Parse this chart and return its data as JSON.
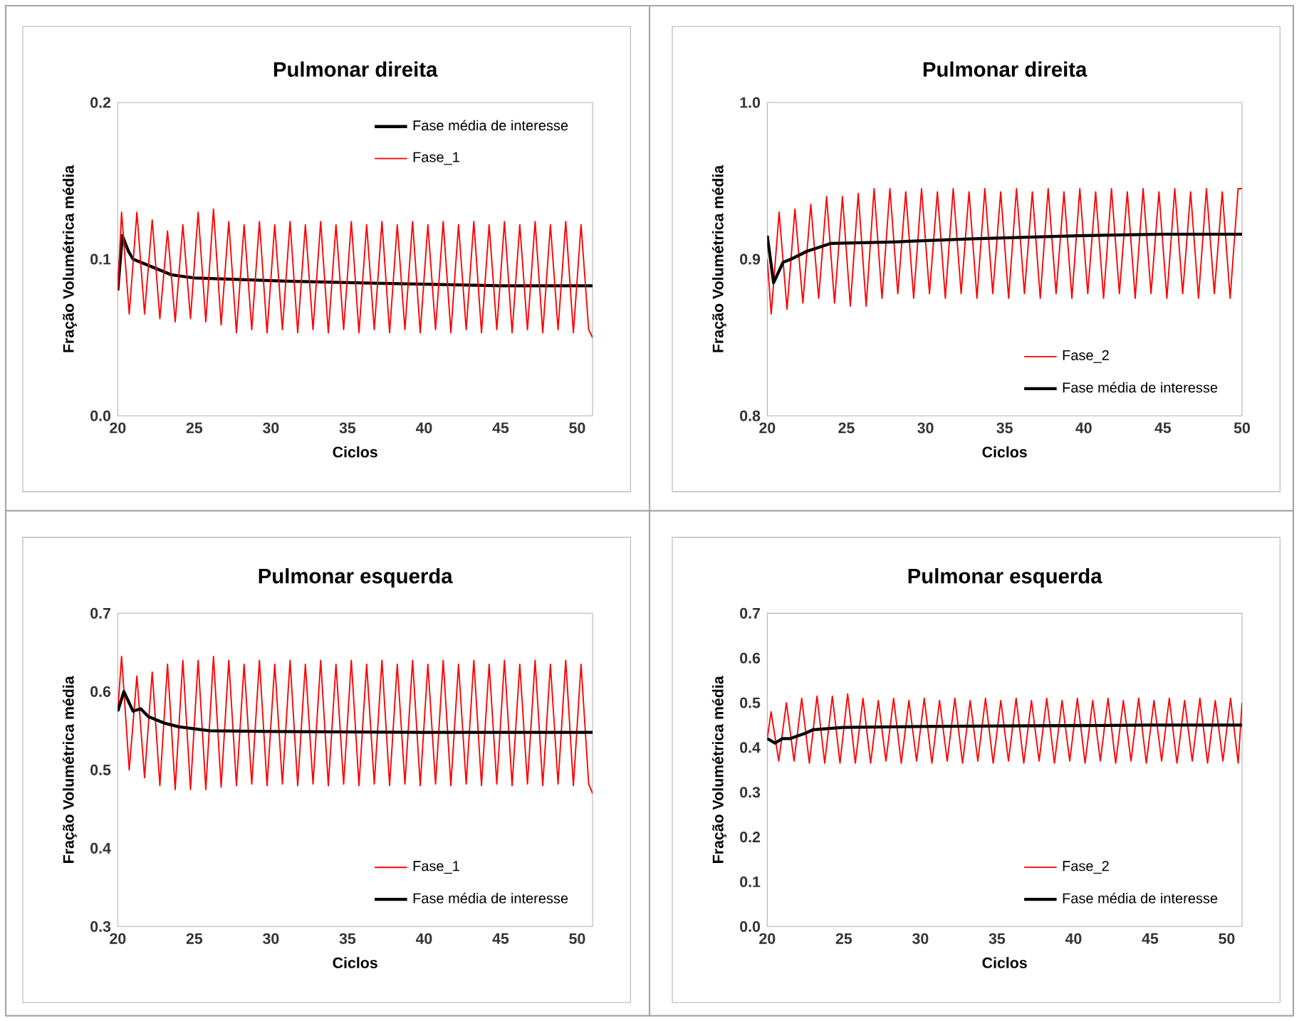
{
  "chart_data": [
    {
      "type": "line",
      "title": "Pulmonar direita",
      "xlabel": "Ciclos",
      "ylabel": "Fração Volumétrica média",
      "legend": "top right",
      "marker": "none",
      "xlim": [
        20,
        51
      ],
      "xticks": [
        20,
        25,
        30,
        35,
        40,
        45,
        50
      ],
      "ylim": [
        0,
        0.2
      ],
      "yticks": [
        {
          "value": 0,
          "label": "0.0"
        },
        {
          "value": 0.1,
          "label": "0.1"
        },
        {
          "value": 0.2,
          "label": "0.2"
        }
      ],
      "x": [
        20,
        20.25,
        20.75,
        21.25,
        21.75,
        22.25,
        22.75,
        23.25,
        23.75,
        24.25,
        24.75,
        25.25,
        25.75,
        26.25,
        26.75,
        27.25,
        27.75,
        28.25,
        28.75,
        29.25,
        29.75,
        30.25,
        30.75,
        31.25,
        31.75,
        32.25,
        32.75,
        33.25,
        33.75,
        34.25,
        34.75,
        35.25,
        35.75,
        36.25,
        36.75,
        37.25,
        37.75,
        38.25,
        38.75,
        39.25,
        39.75,
        40.25,
        40.75,
        41.25,
        41.75,
        42.25,
        42.75,
        43.25,
        43.75,
        44.25,
        44.75,
        45.25,
        45.75,
        46.25,
        46.75,
        47.25,
        47.75,
        48.25,
        48.75,
        49.25,
        49.75,
        50.25,
        50.75,
        51
      ],
      "series": [
        {
          "name": "Fase média de interesse",
          "color": "#000000",
          "x": [
            20,
            20.3,
            20.7,
            21,
            22,
            23,
            23.5,
            25,
            28,
            31,
            35,
            40,
            45,
            51
          ],
          "values": [
            0.08,
            0.115,
            0.105,
            0.1,
            0.096,
            0.092,
            0.09,
            0.088,
            0.087,
            0.086,
            0.085,
            0.084,
            0.083,
            0.083
          ]
        },
        {
          "name": "Fase_1",
          "color": "#ff0000",
          "values": [
            0.08,
            0.13,
            0.065,
            0.13,
            0.065,
            0.125,
            0.062,
            0.118,
            0.06,
            0.122,
            0.062,
            0.13,
            0.06,
            0.132,
            0.058,
            0.124,
            0.053,
            0.122,
            0.055,
            0.124,
            0.053,
            0.122,
            0.055,
            0.124,
            0.053,
            0.122,
            0.055,
            0.124,
            0.053,
            0.122,
            0.055,
            0.124,
            0.053,
            0.122,
            0.055,
            0.124,
            0.053,
            0.122,
            0.055,
            0.124,
            0.053,
            0.122,
            0.055,
            0.124,
            0.053,
            0.122,
            0.055,
            0.124,
            0.053,
            0.122,
            0.055,
            0.124,
            0.053,
            0.122,
            0.055,
            0.124,
            0.053,
            0.122,
            0.055,
            0.124,
            0.053,
            0.122,
            0.055,
            0.05
          ]
        }
      ]
    },
    {
      "type": "line",
      "title": "Pulmonar direita",
      "xlabel": "Ciclos",
      "ylabel": "Fração Volumétrica média",
      "legend": "bottom right",
      "marker": "none",
      "xlim": [
        20,
        50
      ],
      "xticks": [
        20,
        25,
        30,
        35,
        40,
        45,
        50
      ],
      "ylim": [
        0.8,
        1.0
      ],
      "yticks": [
        {
          "value": 0.8,
          "label": "0.8"
        },
        {
          "value": 0.9,
          "label": "0.9"
        },
        {
          "value": 1.0,
          "label": "1.0"
        }
      ],
      "x": [
        20,
        20.25,
        20.75,
        21.25,
        21.75,
        22.25,
        22.75,
        23.25,
        23.75,
        24.25,
        24.75,
        25.25,
        25.75,
        26.25,
        26.75,
        27.25,
        27.75,
        28.25,
        28.75,
        29.25,
        29.75,
        30.25,
        30.75,
        31.25,
        31.75,
        32.25,
        32.75,
        33.25,
        33.75,
        34.25,
        34.75,
        35.25,
        35.75,
        36.25,
        36.75,
        37.25,
        37.75,
        38.25,
        38.75,
        39.25,
        39.75,
        40.25,
        40.75,
        41.25,
        41.75,
        42.25,
        42.75,
        43.25,
        43.75,
        44.25,
        44.75,
        45.25,
        45.75,
        46.25,
        46.75,
        47.25,
        47.75,
        48.25,
        48.75,
        49.25,
        49.75,
        50
      ],
      "series": [
        {
          "name": "Fase_2",
          "color": "#ff0000",
          "values": [
            0.9,
            0.865,
            0.93,
            0.868,
            0.932,
            0.872,
            0.935,
            0.875,
            0.94,
            0.872,
            0.94,
            0.87,
            0.942,
            0.87,
            0.945,
            0.875,
            0.945,
            0.878,
            0.943,
            0.875,
            0.945,
            0.878,
            0.943,
            0.875,
            0.945,
            0.878,
            0.943,
            0.875,
            0.945,
            0.878,
            0.943,
            0.875,
            0.945,
            0.878,
            0.943,
            0.875,
            0.945,
            0.878,
            0.943,
            0.875,
            0.945,
            0.878,
            0.943,
            0.875,
            0.945,
            0.878,
            0.943,
            0.875,
            0.945,
            0.878,
            0.943,
            0.875,
            0.945,
            0.878,
            0.943,
            0.875,
            0.945,
            0.878,
            0.943,
            0.875,
            0.945,
            0.945
          ]
        },
        {
          "name": "Fase média de interesse",
          "color": "#000000",
          "x": [
            20,
            20.4,
            21,
            21.5,
            22.5,
            24,
            28,
            33,
            40,
            45,
            50
          ],
          "values": [
            0.915,
            0.885,
            0.898,
            0.9,
            0.905,
            0.91,
            0.911,
            0.913,
            0.915,
            0.916,
            0.916
          ]
        }
      ]
    },
    {
      "type": "line",
      "title": "Pulmonar esquerda",
      "xlabel": "Ciclos",
      "ylabel": "Fração Volumétrica média",
      "legend": "bottom right",
      "marker": "none",
      "xlim": [
        20,
        51
      ],
      "xticks": [
        20,
        25,
        30,
        35,
        40,
        45,
        50
      ],
      "ylim": [
        0.3,
        0.7
      ],
      "yticks": [
        {
          "value": 0.3,
          "label": "0.3"
        },
        {
          "value": 0.4,
          "label": "0.4"
        },
        {
          "value": 0.5,
          "label": "0.5"
        },
        {
          "value": 0.6,
          "label": "0.6"
        },
        {
          "value": 0.7,
          "label": "0.7"
        }
      ],
      "x": [
        20,
        20.25,
        20.75,
        21.25,
        21.75,
        22.25,
        22.75,
        23.25,
        23.75,
        24.25,
        24.75,
        25.25,
        25.75,
        26.25,
        26.75,
        27.25,
        27.75,
        28.25,
        28.75,
        29.25,
        29.75,
        30.25,
        30.75,
        31.25,
        31.75,
        32.25,
        32.75,
        33.25,
        33.75,
        34.25,
        34.75,
        35.25,
        35.75,
        36.25,
        36.75,
        37.25,
        37.75,
        38.25,
        38.75,
        39.25,
        39.75,
        40.25,
        40.75,
        41.25,
        41.75,
        42.25,
        42.75,
        43.25,
        43.75,
        44.25,
        44.75,
        45.25,
        45.75,
        46.25,
        46.75,
        47.25,
        47.75,
        48.25,
        48.75,
        49.25,
        49.75,
        50.25,
        50.75,
        51
      ],
      "series": [
        {
          "name": "Fase_1",
          "color": "#ff0000",
          "values": [
            0.575,
            0.645,
            0.5,
            0.62,
            0.49,
            0.625,
            0.48,
            0.635,
            0.475,
            0.64,
            0.475,
            0.64,
            0.475,
            0.645,
            0.478,
            0.64,
            0.48,
            0.635,
            0.482,
            0.64,
            0.48,
            0.635,
            0.482,
            0.64,
            0.48,
            0.635,
            0.482,
            0.64,
            0.48,
            0.635,
            0.482,
            0.64,
            0.48,
            0.635,
            0.482,
            0.64,
            0.48,
            0.635,
            0.482,
            0.64,
            0.48,
            0.635,
            0.482,
            0.64,
            0.48,
            0.635,
            0.482,
            0.64,
            0.48,
            0.635,
            0.482,
            0.64,
            0.48,
            0.635,
            0.482,
            0.64,
            0.48,
            0.635,
            0.482,
            0.64,
            0.48,
            0.635,
            0.482,
            0.47
          ]
        },
        {
          "name": "Fase média de interesse",
          "color": "#000000",
          "x": [
            20,
            20.4,
            21,
            21.5,
            22,
            23,
            24,
            26,
            30,
            40,
            51
          ],
          "values": [
            0.575,
            0.6,
            0.575,
            0.578,
            0.568,
            0.56,
            0.555,
            0.55,
            0.549,
            0.548,
            0.548
          ]
        }
      ]
    },
    {
      "type": "line",
      "title": "Pulmonar esquerda",
      "xlabel": "Ciclos",
      "ylabel": "Fração Volumétrica média",
      "legend": "bottom right",
      "marker": "none",
      "xlim": [
        20,
        51
      ],
      "xticks": [
        20,
        25,
        30,
        35,
        40,
        45,
        50
      ],
      "ylim": [
        0,
        0.7
      ],
      "yticks": [
        {
          "value": 0,
          "label": "0.0"
        },
        {
          "value": 0.1,
          "label": "0.1"
        },
        {
          "value": 0.2,
          "label": "0.2"
        },
        {
          "value": 0.3,
          "label": "0.3"
        },
        {
          "value": 0.4,
          "label": "0.4"
        },
        {
          "value": 0.5,
          "label": "0.5"
        },
        {
          "value": 0.6,
          "label": "0.6"
        },
        {
          "value": 0.7,
          "label": "0.7"
        }
      ],
      "x": [
        20,
        20.25,
        20.75,
        21.25,
        21.75,
        22.25,
        22.75,
        23.25,
        23.75,
        24.25,
        24.75,
        25.25,
        25.75,
        26.25,
        26.75,
        27.25,
        27.75,
        28.25,
        28.75,
        29.25,
        29.75,
        30.25,
        30.75,
        31.25,
        31.75,
        32.25,
        32.75,
        33.25,
        33.75,
        34.25,
        34.75,
        35.25,
        35.75,
        36.25,
        36.75,
        37.25,
        37.75,
        38.25,
        38.75,
        39.25,
        39.75,
        40.25,
        40.75,
        41.25,
        41.75,
        42.25,
        42.75,
        43.25,
        43.75,
        44.25,
        44.75,
        45.25,
        45.75,
        46.25,
        46.75,
        47.25,
        47.75,
        48.25,
        48.75,
        49.25,
        49.75,
        50.25,
        50.75,
        51
      ],
      "series": [
        {
          "name": "Fase_2",
          "color": "#ff0000",
          "values": [
            0.42,
            0.48,
            0.37,
            0.5,
            0.37,
            0.51,
            0.365,
            0.515,
            0.365,
            0.515,
            0.365,
            0.52,
            0.365,
            0.51,
            0.365,
            0.505,
            0.37,
            0.51,
            0.365,
            0.505,
            0.37,
            0.51,
            0.365,
            0.505,
            0.37,
            0.51,
            0.365,
            0.505,
            0.37,
            0.51,
            0.365,
            0.505,
            0.37,
            0.51,
            0.365,
            0.505,
            0.37,
            0.51,
            0.365,
            0.505,
            0.37,
            0.51,
            0.365,
            0.505,
            0.37,
            0.51,
            0.365,
            0.505,
            0.37,
            0.51,
            0.365,
            0.505,
            0.37,
            0.51,
            0.365,
            0.505,
            0.37,
            0.51,
            0.365,
            0.505,
            0.37,
            0.51,
            0.365,
            0.5
          ]
        },
        {
          "name": "Fase média de interesse",
          "color": "#000000",
          "x": [
            20,
            20.5,
            21,
            21.5,
            22.5,
            23,
            25,
            30,
            35,
            45,
            51
          ],
          "values": [
            0.42,
            0.41,
            0.42,
            0.42,
            0.432,
            0.44,
            0.445,
            0.447,
            0.448,
            0.45,
            0.45
          ]
        }
      ]
    }
  ]
}
